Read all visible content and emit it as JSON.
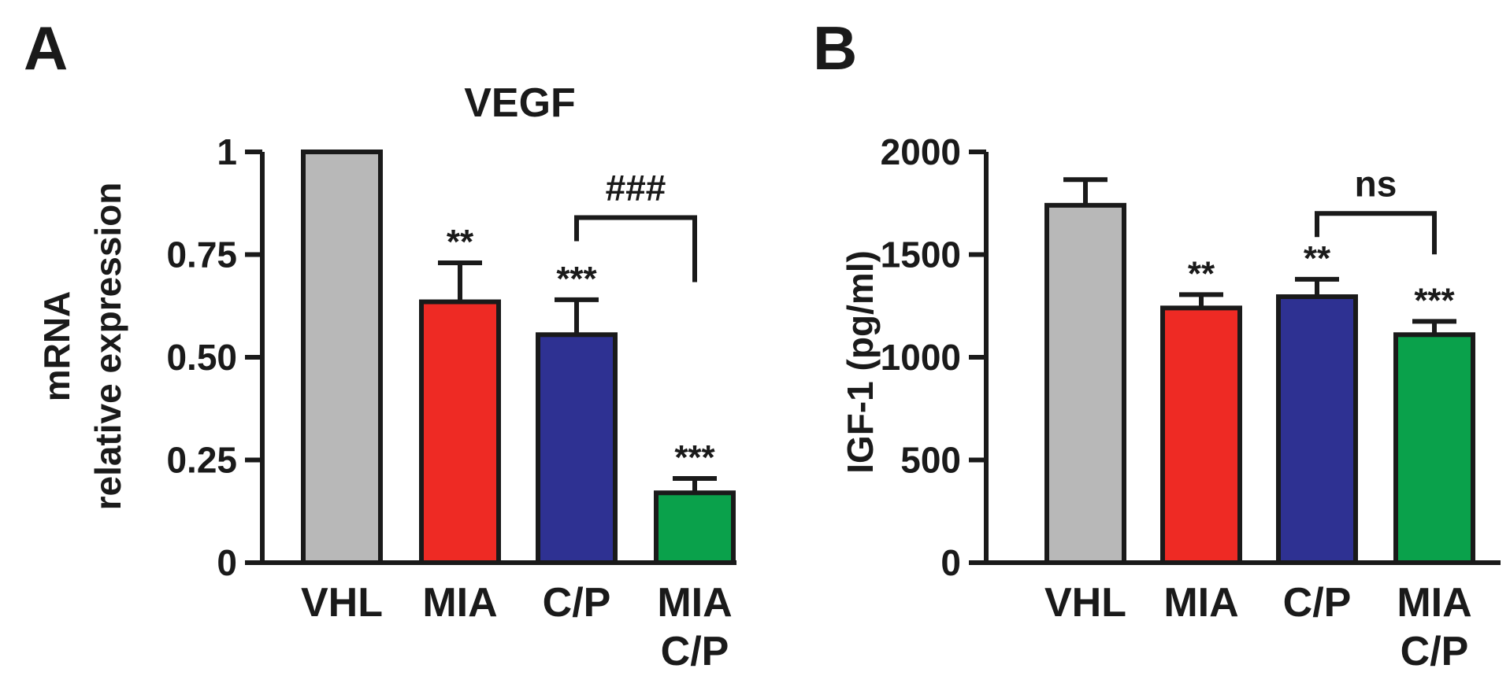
{
  "colors": {
    "ink": "#1a1a1a",
    "vhl": "#b8b8b8",
    "mia": "#ee2a24",
    "cp": "#2e3192",
    "mia_cp": "#0aa14b"
  },
  "chart_data": [
    {
      "type": "bar",
      "panel_letter": "A",
      "title": "VEGF",
      "ylabel_line1": "mRNA",
      "ylabel_line2": "relative expression",
      "xlabel": "",
      "ylim": [
        0,
        1
      ],
      "yticks": [
        0,
        0.25,
        0.5,
        0.75,
        1
      ],
      "ytick_labels": [
        "0",
        "0.25",
        "0.50",
        "0.75",
        "1"
      ],
      "categories": [
        {
          "line1": "VHL",
          "line2": ""
        },
        {
          "line1": "MIA",
          "line2": ""
        },
        {
          "line1": "C/P",
          "line2": ""
        },
        {
          "line1": "MIA",
          "line2": "C/P"
        }
      ],
      "values": [
        1.0,
        0.635,
        0.555,
        0.17
      ],
      "errors": [
        0,
        0.095,
        0.085,
        0.035
      ],
      "bar_colors": [
        "#b8b8b8",
        "#ee2a24",
        "#2e3192",
        "#0aa14b"
      ],
      "significance": [
        "",
        "**",
        "***",
        "***"
      ],
      "comparison": {
        "from": 2,
        "to": 3,
        "label": "###",
        "y": 0.84
      }
    },
    {
      "type": "bar",
      "panel_letter": "B",
      "title": "",
      "ylabel_line1": "IGF-1 (pg/ml)",
      "ylabel_line2": "",
      "xlabel": "",
      "ylim": [
        0,
        2000
      ],
      "yticks": [
        0,
        500,
        1000,
        1500,
        2000
      ],
      "ytick_labels": [
        "0",
        "500",
        "1000",
        "1500",
        "2000"
      ],
      "categories": [
        {
          "line1": "VHL",
          "line2": ""
        },
        {
          "line1": "MIA",
          "line2": ""
        },
        {
          "line1": "C/P",
          "line2": ""
        },
        {
          "line1": "MIA",
          "line2": "C/P"
        }
      ],
      "values": [
        1740,
        1240,
        1295,
        1110
      ],
      "errors": [
        125,
        65,
        85,
        65
      ],
      "bar_colors": [
        "#b8b8b8",
        "#ee2a24",
        "#2e3192",
        "#0aa14b"
      ],
      "significance": [
        "",
        "**",
        "**",
        "***"
      ],
      "comparison": {
        "from": 2,
        "to": 3,
        "label": "ns",
        "y": 1700
      }
    }
  ]
}
